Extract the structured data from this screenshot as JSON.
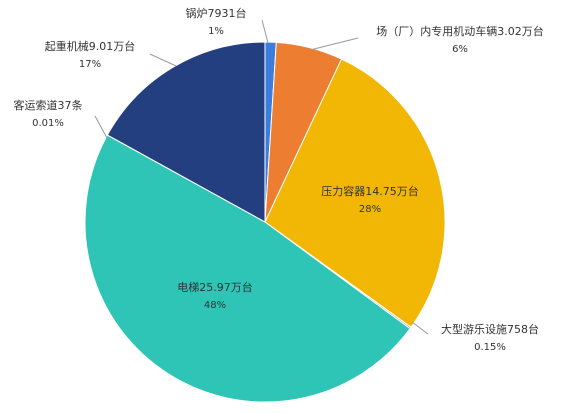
{
  "chart_data": {
    "type": "pie",
    "categories": [
      "锅炉7931台",
      "场（厂）内专用机动车辆3.02万台",
      "压力容器14.75万台",
      "大型游乐设施758台",
      "电梯25.97万台",
      "客运索道37条",
      "起重机械9.01万台"
    ],
    "values": [
      1,
      6,
      28,
      0.15,
      48,
      0.01,
      17
    ],
    "value_labels": [
      "1%",
      "6%",
      "28%",
      "0.15%",
      "48%",
      "0.01%",
      "17%"
    ],
    "colors": [
      "#3b7ddd",
      "#ed7d31",
      "#f2b705",
      "#a5a5a5",
      "#2ec4b6",
      "#5b9bd5",
      "#243f7f"
    ]
  }
}
